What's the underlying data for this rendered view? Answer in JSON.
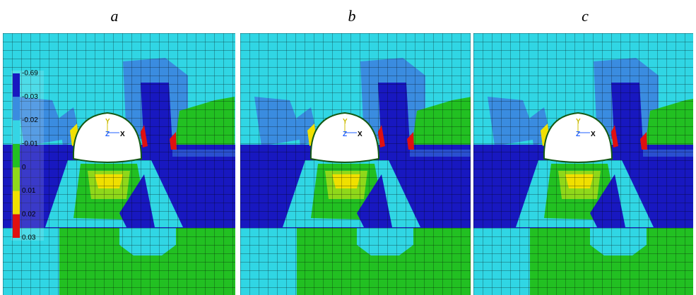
{
  "panels": [
    {
      "label": "a"
    },
    {
      "label": "b"
    },
    {
      "label": "c"
    }
  ],
  "triad": {
    "y": "Y",
    "z": "Z",
    "x": "X"
  },
  "legend": {
    "labels": [
      "-0.69",
      "-0.03",
      "-0.02",
      "-0.01",
      "0",
      "0.01",
      "0.02",
      "0.03"
    ],
    "colors": [
      "#1818c0",
      "#3a8ce0",
      "#35d5e5",
      "#22c022",
      "#8fd81a",
      "#f0e000",
      "#e01010"
    ]
  }
}
